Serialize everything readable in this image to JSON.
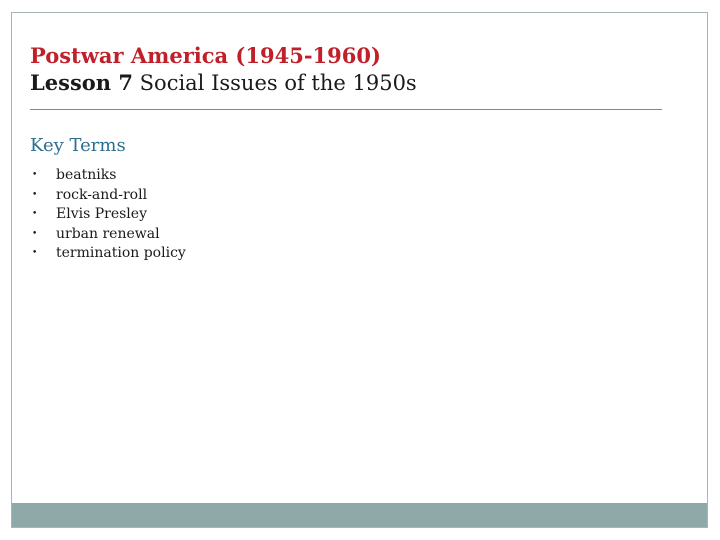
{
  "slide": {
    "title_line1": "Postwar America (1945-1960)",
    "title_lesson_label": "Lesson 7",
    "title_lesson_topic": " Social Issues of the 1950s",
    "section_heading": "Key Terms",
    "terms": [
      "beatniks",
      "rock-and-roll",
      "Elvis Presley",
      "urban renewal",
      "termination policy"
    ],
    "bullet_glyph": "•"
  },
  "colors": {
    "title_red": "#c0202a",
    "heading_blue": "#2e6e8e",
    "footer_bar": "#8fa8a8",
    "border": "#a9b4b4"
  }
}
